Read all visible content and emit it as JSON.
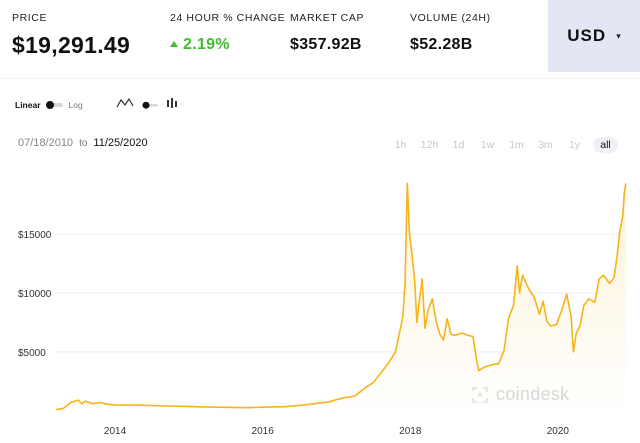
{
  "stats": {
    "price": {
      "label": "PRICE",
      "value": "$19,291.49"
    },
    "change": {
      "label": "24 HOUR % CHANGE",
      "value": "2.19%"
    },
    "marketcap": {
      "label": "MARKET CAP",
      "value": "$357.92B"
    },
    "volume": {
      "label": "VOLUME (24H)",
      "value": "$52.28B"
    }
  },
  "currency": {
    "value": "USD",
    "icon": "chevron-down-icon"
  },
  "scale": {
    "linear": "Linear",
    "log": "Log",
    "selected": "Linear"
  },
  "chart_types": {
    "selected": "line",
    "icons": [
      "line-chart-icon",
      "toggle-icon",
      "candlestick-icon"
    ]
  },
  "range": {
    "from": "07/18/2010",
    "to_label": "to",
    "to": "11/25/2020"
  },
  "range_buttons": [
    "1h",
    "12h",
    "1d",
    "1w",
    "1m",
    "3m",
    "1y",
    "all"
  ],
  "range_selected": "all",
  "watermark": "coindesk",
  "colors": {
    "line": "#f4b41a",
    "fill": "#fdf3d8",
    "positive": "#3fbd2f",
    "currency_bg": "#e4e7f3"
  },
  "chart_data": {
    "type": "area",
    "ylabel_ticks": [
      "$5000",
      "$10000",
      "$15000"
    ],
    "yticks": [
      5000,
      10000,
      15000
    ],
    "xlabel_ticks": [
      "2014",
      "2016",
      "2018",
      "2020"
    ],
    "xticks": [
      2014,
      2016,
      2018,
      2020
    ],
    "xlim": [
      2013.2,
      2020.95
    ],
    "ylim": [
      -700,
      20600
    ],
    "grid": true,
    "series": [
      {
        "points": [
          [
            2013.2,
            100
          ],
          [
            2013.3,
            200
          ],
          [
            2013.4,
            700
          ],
          [
            2013.5,
            900
          ],
          [
            2013.55,
            600
          ],
          [
            2013.6,
            800
          ],
          [
            2013.7,
            600
          ],
          [
            2013.8,
            700
          ],
          [
            2013.9,
            550
          ],
          [
            2014.0,
            500
          ],
          [
            2014.3,
            480
          ],
          [
            2014.6,
            420
          ],
          [
            2014.9,
            380
          ],
          [
            2015.2,
            330
          ],
          [
            2015.5,
            290
          ],
          [
            2015.8,
            260
          ],
          [
            2016.0,
            300
          ],
          [
            2016.3,
            340
          ],
          [
            2016.5,
            450
          ],
          [
            2016.7,
            600
          ],
          [
            2016.9,
            760
          ],
          [
            2017.0,
            950
          ],
          [
            2017.1,
            1100
          ],
          [
            2017.25,
            1250
          ],
          [
            2017.4,
            2000
          ],
          [
            2017.5,
            2400
          ],
          [
            2017.6,
            3200
          ],
          [
            2017.7,
            4000
          ],
          [
            2017.8,
            5000
          ],
          [
            2017.85,
            6500
          ],
          [
            2017.9,
            8000
          ],
          [
            2017.93,
            11000
          ],
          [
            2017.96,
            19300
          ],
          [
            2017.99,
            15000
          ],
          [
            2018.02,
            13500
          ],
          [
            2018.06,
            11000
          ],
          [
            2018.09,
            7500
          ],
          [
            2018.12,
            9200
          ],
          [
            2018.16,
            11200
          ],
          [
            2018.2,
            7000
          ],
          [
            2018.24,
            8500
          ],
          [
            2018.3,
            9500
          ],
          [
            2018.35,
            7600
          ],
          [
            2018.4,
            6500
          ],
          [
            2018.45,
            6000
          ],
          [
            2018.5,
            7800
          ],
          [
            2018.55,
            6500
          ],
          [
            2018.6,
            6400
          ],
          [
            2018.7,
            6600
          ],
          [
            2018.78,
            6400
          ],
          [
            2018.85,
            6300
          ],
          [
            2018.9,
            4200
          ],
          [
            2018.93,
            3400
          ],
          [
            2019.0,
            3700
          ],
          [
            2019.1,
            3900
          ],
          [
            2019.2,
            4000
          ],
          [
            2019.27,
            5100
          ],
          [
            2019.33,
            7800
          ],
          [
            2019.4,
            9000
          ],
          [
            2019.45,
            12300
          ],
          [
            2019.48,
            10000
          ],
          [
            2019.52,
            11500
          ],
          [
            2019.6,
            10400
          ],
          [
            2019.68,
            9600
          ],
          [
            2019.75,
            8200
          ],
          [
            2019.8,
            9300
          ],
          [
            2019.85,
            7600
          ],
          [
            2019.9,
            7200
          ],
          [
            2019.98,
            7300
          ],
          [
            2020.05,
            8500
          ],
          [
            2020.12,
            9900
          ],
          [
            2020.18,
            8000
          ],
          [
            2020.21,
            5000
          ],
          [
            2020.25,
            6600
          ],
          [
            2020.3,
            7200
          ],
          [
            2020.35,
            8900
          ],
          [
            2020.42,
            9500
          ],
          [
            2020.5,
            9200
          ],
          [
            2020.56,
            11200
          ],
          [
            2020.62,
            11500
          ],
          [
            2020.7,
            10800
          ],
          [
            2020.76,
            11300
          ],
          [
            2020.8,
            13000
          ],
          [
            2020.84,
            15300
          ],
          [
            2020.88,
            16500
          ],
          [
            2020.9,
            18500
          ],
          [
            2020.92,
            19300
          ]
        ]
      }
    ]
  }
}
